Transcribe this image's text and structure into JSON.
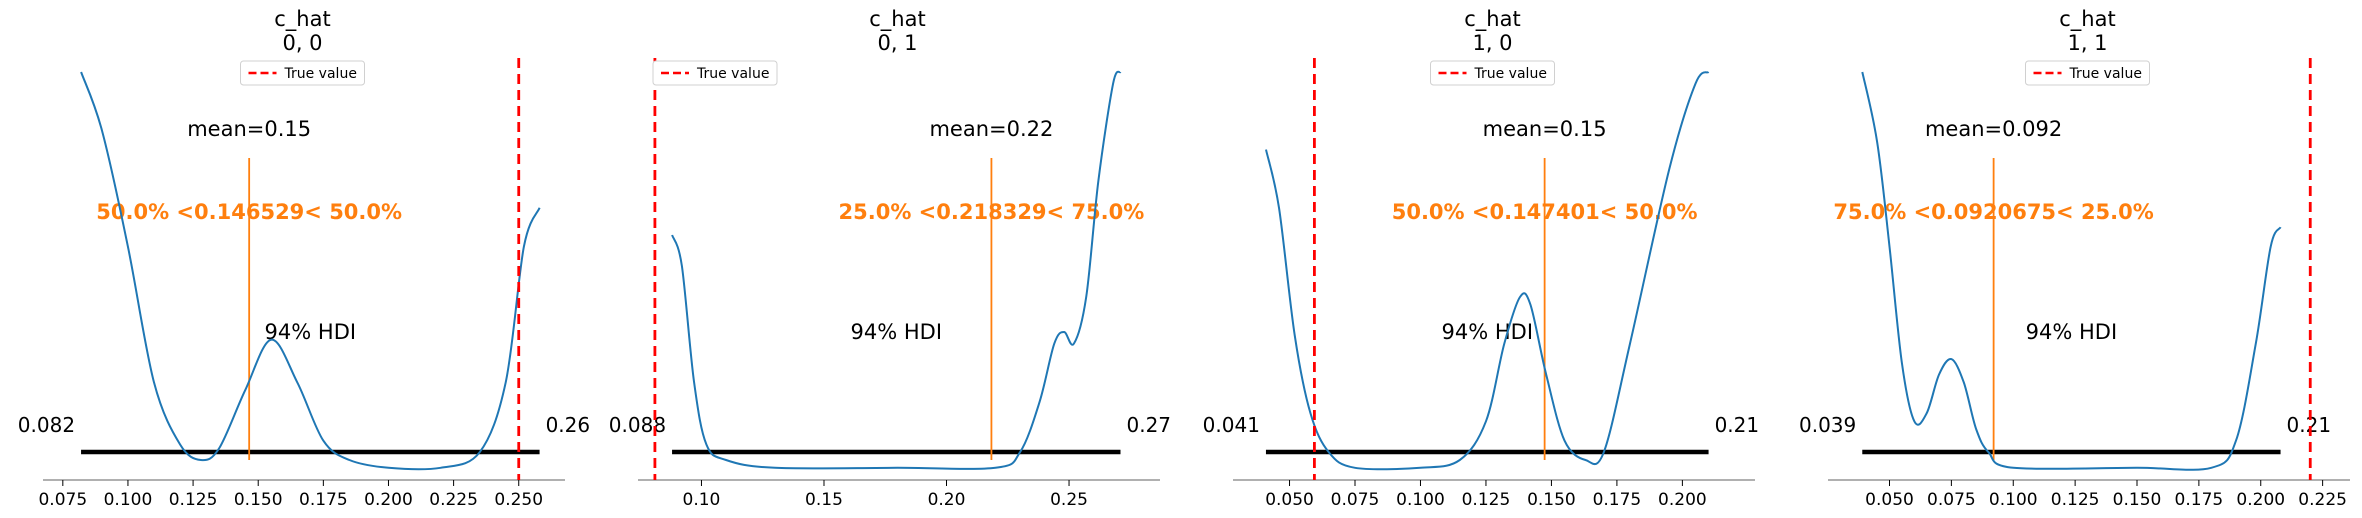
{
  "legend_label": "True value",
  "colors": {
    "density": "#1f77b4",
    "true_value": "#ff0000",
    "point_estimate": "#ff7f0e",
    "hdi_bar": "#000000",
    "axis": "#808080"
  },
  "chart_data": [
    {
      "type": "line",
      "title": "c_hat",
      "subtitle": "0, 0",
      "xlim": [
        0.072,
        0.262
      ],
      "xticks": [
        "0.075",
        "0.100",
        "0.125",
        "0.150",
        "0.175",
        "0.200",
        "0.225",
        "0.250"
      ],
      "density": [
        [
          0.082,
          1.0
        ],
        [
          0.09,
          0.85
        ],
        [
          0.1,
          0.55
        ],
        [
          0.11,
          0.2
        ],
        [
          0.12,
          0.04
        ],
        [
          0.128,
          0.0
        ],
        [
          0.135,
          0.03
        ],
        [
          0.145,
          0.18
        ],
        [
          0.155,
          0.31
        ],
        [
          0.165,
          0.2
        ],
        [
          0.175,
          0.05
        ],
        [
          0.185,
          0.0
        ],
        [
          0.2,
          -0.02
        ],
        [
          0.22,
          -0.02
        ],
        [
          0.235,
          0.02
        ],
        [
          0.245,
          0.2
        ],
        [
          0.252,
          0.55
        ],
        [
          0.258,
          0.65
        ]
      ],
      "true_value": 0.25,
      "mean_label": "mean=0.15",
      "mean": 0.146529,
      "ref_label": "50.0% <0.146529< 50.0%",
      "hdi_label": "94% HDI",
      "hdi": [
        0.082,
        0.258
      ],
      "hdi_low_label": "0.082",
      "hdi_high_label": "0.26",
      "legend_position": "upper center"
    },
    {
      "type": "line",
      "title": "c_hat",
      "subtitle": "0, 1",
      "xlim": [
        0.079,
        0.281
      ],
      "xticks": [
        "0.10",
        "0.15",
        "0.20",
        "0.25"
      ],
      "density": [
        [
          0.088,
          0.58
        ],
        [
          0.092,
          0.5
        ],
        [
          0.097,
          0.2
        ],
        [
          0.102,
          0.04
        ],
        [
          0.11,
          0.0
        ],
        [
          0.13,
          -0.02
        ],
        [
          0.18,
          -0.02
        ],
        [
          0.22,
          -0.02
        ],
        [
          0.23,
          0.02
        ],
        [
          0.238,
          0.15
        ],
        [
          0.244,
          0.3
        ],
        [
          0.248,
          0.33
        ],
        [
          0.252,
          0.3
        ],
        [
          0.257,
          0.42
        ],
        [
          0.262,
          0.72
        ],
        [
          0.268,
          0.97
        ],
        [
          0.271,
          1.0
        ]
      ],
      "true_value": 0.081,
      "mean_label": "mean=0.22",
      "mean": 0.218329,
      "ref_label": "25.0% <0.218329< 75.0%",
      "hdi_label": "94% HDI",
      "hdi": [
        0.088,
        0.271
      ],
      "hdi_low_label": "0.088",
      "hdi_high_label": "0.27",
      "legend_position": "upper left"
    },
    {
      "type": "line",
      "title": "c_hat",
      "subtitle": "1, 0",
      "xlim": [
        0.033,
        0.222
      ],
      "xticks": [
        "0.050",
        "0.075",
        "0.100",
        "0.125",
        "0.150",
        "0.175",
        "0.200"
      ],
      "density": [
        [
          0.041,
          0.8
        ],
        [
          0.046,
          0.65
        ],
        [
          0.052,
          0.32
        ],
        [
          0.058,
          0.12
        ],
        [
          0.065,
          0.02
        ],
        [
          0.075,
          -0.02
        ],
        [
          0.1,
          -0.02
        ],
        [
          0.115,
          0.0
        ],
        [
          0.125,
          0.1
        ],
        [
          0.132,
          0.3
        ],
        [
          0.138,
          0.42
        ],
        [
          0.142,
          0.4
        ],
        [
          0.148,
          0.22
        ],
        [
          0.155,
          0.05
        ],
        [
          0.163,
          0.0
        ],
        [
          0.17,
          0.02
        ],
        [
          0.18,
          0.3
        ],
        [
          0.195,
          0.75
        ],
        [
          0.205,
          0.97
        ],
        [
          0.21,
          1.0
        ]
      ],
      "true_value": 0.0595,
      "mean_label": "mean=0.15",
      "mean": 0.147401,
      "ref_label": "50.0% <0.147401< 50.0%",
      "hdi_label": "94% HDI",
      "hdi": [
        0.041,
        0.21
      ],
      "hdi_low_label": "0.041",
      "hdi_high_label": "0.21",
      "legend_position": "upper center"
    },
    {
      "type": "line",
      "title": "c_hat",
      "subtitle": "1, 1",
      "xlim": [
        0.03,
        0.23
      ],
      "xticks": [
        "0.050",
        "0.075",
        "0.100",
        "0.125",
        "0.150",
        "0.175",
        "0.200",
        "0.225"
      ],
      "density": [
        [
          0.039,
          1.0
        ],
        [
          0.045,
          0.82
        ],
        [
          0.05,
          0.55
        ],
        [
          0.055,
          0.25
        ],
        [
          0.06,
          0.1
        ],
        [
          0.065,
          0.12
        ],
        [
          0.07,
          0.22
        ],
        [
          0.075,
          0.26
        ],
        [
          0.08,
          0.2
        ],
        [
          0.085,
          0.08
        ],
        [
          0.09,
          0.02
        ],
        [
          0.1,
          -0.02
        ],
        [
          0.15,
          -0.02
        ],
        [
          0.18,
          -0.02
        ],
        [
          0.19,
          0.05
        ],
        [
          0.198,
          0.3
        ],
        [
          0.204,
          0.55
        ],
        [
          0.208,
          0.6
        ]
      ],
      "true_value": 0.22,
      "mean_label": "mean=0.092",
      "mean": 0.0920675,
      "ref_label": "75.0% <0.0920675< 25.0%",
      "hdi_label": "94% HDI",
      "hdi": [
        0.039,
        0.208
      ],
      "hdi_low_label": "0.039",
      "hdi_high_label": "0.21",
      "legend_position": "upper center"
    }
  ]
}
